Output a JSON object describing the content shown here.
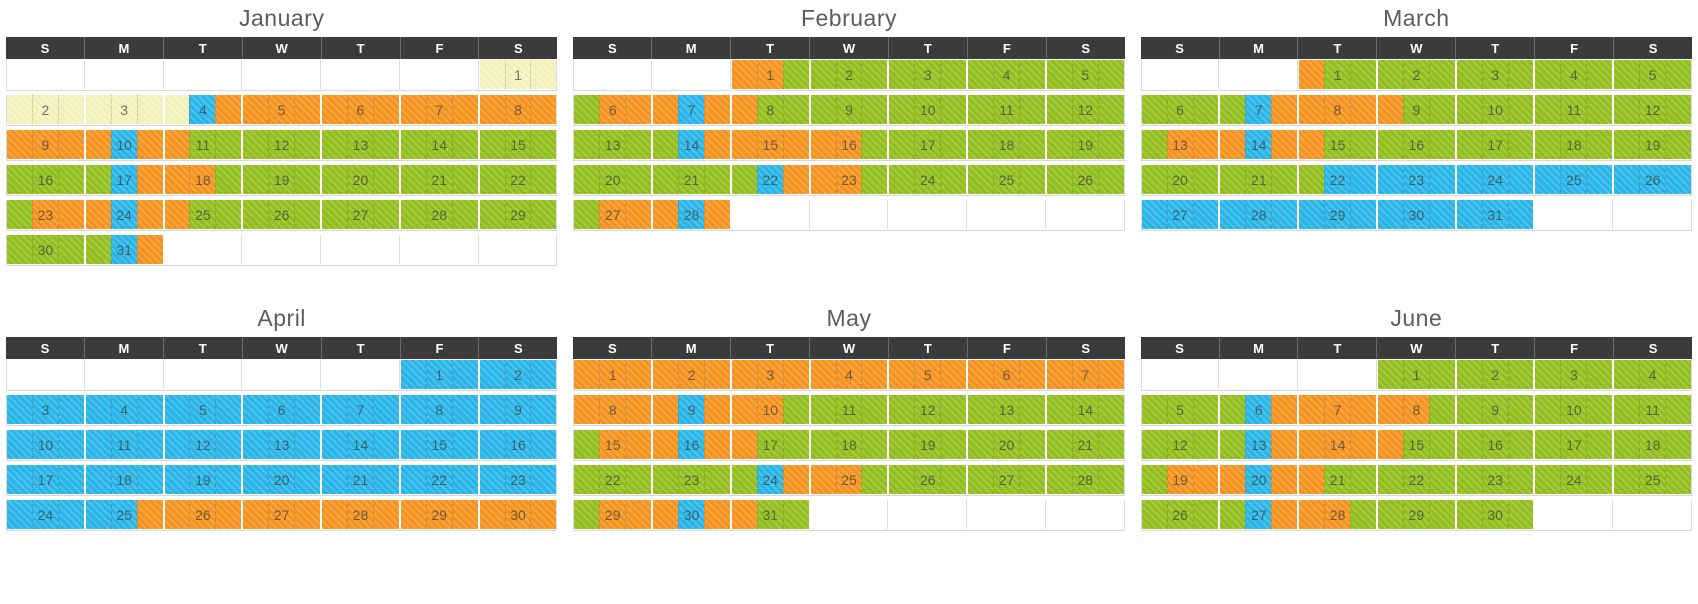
{
  "palette": {
    "o": "#F7941E",
    "g": "#93C01D",
    "b": "#29B7EA",
    "y": "#F5F4BE"
  },
  "colors": {
    "header_bg": "#3B3B3B",
    "header_text": "#FFFFFF",
    "title_text": "#5A5C5E",
    "row_line": "#D8D8D8",
    "grid_line": "#DCDCDC",
    "day_number_text": "#3E403E"
  },
  "weekday_headers": [
    "S",
    "M",
    "T",
    "W",
    "T",
    "F",
    "S"
  ],
  "months": [
    {
      "name": "January",
      "weeks": [
        [
          null,
          null,
          null,
          null,
          null,
          null,
          [
            1,
            "yyy"
          ]
        ],
        [
          [
            2,
            "yyy"
          ],
          [
            3,
            "yyy"
          ],
          [
            4,
            "ybo"
          ],
          [
            5,
            "ooo"
          ],
          [
            6,
            "ooo"
          ],
          [
            7,
            "ooo"
          ],
          [
            8,
            "ooo"
          ]
        ],
        [
          [
            9,
            "ooo"
          ],
          [
            10,
            "obo"
          ],
          [
            11,
            "ogg"
          ],
          [
            12,
            "ggg"
          ],
          [
            13,
            "ggg"
          ],
          [
            14,
            "ggg"
          ],
          [
            15,
            "ggg"
          ]
        ],
        [
          [
            16,
            "ggg"
          ],
          [
            17,
            "gbo"
          ],
          [
            18,
            "oog"
          ],
          [
            19,
            "ggg"
          ],
          [
            20,
            "ggg"
          ],
          [
            21,
            "ggg"
          ],
          [
            22,
            "ggg"
          ]
        ],
        [
          [
            23,
            "goo"
          ],
          [
            24,
            "obo"
          ],
          [
            25,
            "ogg"
          ],
          [
            26,
            "ggg"
          ],
          [
            27,
            "ggg"
          ],
          [
            28,
            "ggg"
          ],
          [
            29,
            "ggg"
          ]
        ],
        [
          [
            30,
            "ggg"
          ],
          [
            31,
            "gbo"
          ],
          null,
          null,
          null,
          null,
          null
        ]
      ]
    },
    {
      "name": "February",
      "weeks": [
        [
          null,
          null,
          [
            1,
            "oog"
          ],
          [
            2,
            "ggg"
          ],
          [
            3,
            "ggg"
          ],
          [
            4,
            "ggg"
          ],
          [
            5,
            "ggg"
          ]
        ],
        [
          [
            6,
            "goo"
          ],
          [
            7,
            "obo"
          ],
          [
            8,
            "ogg"
          ],
          [
            9,
            "ggg"
          ],
          [
            10,
            "ggg"
          ],
          [
            11,
            "ggg"
          ],
          [
            12,
            "ggg"
          ]
        ],
        [
          [
            13,
            "ggg"
          ],
          [
            14,
            "gbo"
          ],
          [
            15,
            "ooo"
          ],
          [
            16,
            "oog"
          ],
          [
            17,
            "ggg"
          ],
          [
            18,
            "ggg"
          ],
          [
            19,
            "ggg"
          ]
        ],
        [
          [
            20,
            "ggg"
          ],
          [
            21,
            "ggg"
          ],
          [
            22,
            "gbo"
          ],
          [
            23,
            "oog"
          ],
          [
            24,
            "ggg"
          ],
          [
            25,
            "ggg"
          ],
          [
            26,
            "ggg"
          ]
        ],
        [
          [
            27,
            "goo"
          ],
          [
            28,
            "obo"
          ],
          null,
          null,
          null,
          null,
          null
        ]
      ]
    },
    {
      "name": "March",
      "weeks": [
        [
          null,
          null,
          [
            1,
            "ogg"
          ],
          [
            2,
            "ggg"
          ],
          [
            3,
            "ggg"
          ],
          [
            4,
            "ggg"
          ],
          [
            5,
            "ggg"
          ]
        ],
        [
          [
            6,
            "ggg"
          ],
          [
            7,
            "gbo"
          ],
          [
            8,
            "ooo"
          ],
          [
            9,
            "ogg"
          ],
          [
            10,
            "ggg"
          ],
          [
            11,
            "ggg"
          ],
          [
            12,
            "ggg"
          ]
        ],
        [
          [
            13,
            "goo"
          ],
          [
            14,
            "obo"
          ],
          [
            15,
            "ogg"
          ],
          [
            16,
            "ggg"
          ],
          [
            17,
            "ggg"
          ],
          [
            18,
            "ggg"
          ],
          [
            19,
            "ggg"
          ]
        ],
        [
          [
            20,
            "ggg"
          ],
          [
            21,
            "ggg"
          ],
          [
            22,
            "gbb"
          ],
          [
            23,
            "bbb"
          ],
          [
            24,
            "bbb"
          ],
          [
            25,
            "bbb"
          ],
          [
            26,
            "bbb"
          ]
        ],
        [
          [
            27,
            "bbb"
          ],
          [
            28,
            "bbb"
          ],
          [
            29,
            "bbb"
          ],
          [
            30,
            "bbb"
          ],
          [
            31,
            "bbb"
          ],
          null,
          null
        ]
      ]
    },
    {
      "name": "April",
      "weeks": [
        [
          null,
          null,
          null,
          null,
          null,
          [
            1,
            "bbb"
          ],
          [
            2,
            "bbb"
          ]
        ],
        [
          [
            3,
            "bbb"
          ],
          [
            4,
            "bbb"
          ],
          [
            5,
            "bbb"
          ],
          [
            6,
            "bbb"
          ],
          [
            7,
            "bbb"
          ],
          [
            8,
            "bbb"
          ],
          [
            9,
            "bbb"
          ]
        ],
        [
          [
            10,
            "bbb"
          ],
          [
            11,
            "bbb"
          ],
          [
            12,
            "bbb"
          ],
          [
            13,
            "bbb"
          ],
          [
            14,
            "bbb"
          ],
          [
            15,
            "bbb"
          ],
          [
            16,
            "bbb"
          ]
        ],
        [
          [
            17,
            "bbb"
          ],
          [
            18,
            "bbb"
          ],
          [
            19,
            "bbb"
          ],
          [
            20,
            "bbb"
          ],
          [
            21,
            "bbb"
          ],
          [
            22,
            "bbb"
          ],
          [
            23,
            "bbb"
          ]
        ],
        [
          [
            24,
            "bbb"
          ],
          [
            25,
            "bbo"
          ],
          [
            26,
            "ooo"
          ],
          [
            27,
            "ooo"
          ],
          [
            28,
            "ooo"
          ],
          [
            29,
            "ooo"
          ],
          [
            30,
            "ooo"
          ]
        ]
      ]
    },
    {
      "name": "May",
      "weeks": [
        [
          [
            1,
            "ooo"
          ],
          [
            2,
            "ooo"
          ],
          [
            3,
            "ooo"
          ],
          [
            4,
            "ooo"
          ],
          [
            5,
            "ooo"
          ],
          [
            6,
            "ooo"
          ],
          [
            7,
            "ooo"
          ]
        ],
        [
          [
            8,
            "ooo"
          ],
          [
            9,
            "obo"
          ],
          [
            10,
            "oog"
          ],
          [
            11,
            "ggg"
          ],
          [
            12,
            "ggg"
          ],
          [
            13,
            "ggg"
          ],
          [
            14,
            "ggg"
          ]
        ],
        [
          [
            15,
            "goo"
          ],
          [
            16,
            "obo"
          ],
          [
            17,
            "ogg"
          ],
          [
            18,
            "ggg"
          ],
          [
            19,
            "ggg"
          ],
          [
            20,
            "ggg"
          ],
          [
            21,
            "ggg"
          ]
        ],
        [
          [
            22,
            "ggg"
          ],
          [
            23,
            "ggg"
          ],
          [
            24,
            "gbo"
          ],
          [
            25,
            "oog"
          ],
          [
            26,
            "ggg"
          ],
          [
            27,
            "ggg"
          ],
          [
            28,
            "ggg"
          ]
        ],
        [
          [
            29,
            "goo"
          ],
          [
            30,
            "obo"
          ],
          [
            31,
            "ogg"
          ],
          null,
          null,
          null,
          null
        ]
      ]
    },
    {
      "name": "June",
      "weeks": [
        [
          null,
          null,
          null,
          [
            1,
            "ggg"
          ],
          [
            2,
            "ggg"
          ],
          [
            3,
            "ggg"
          ],
          [
            4,
            "ggg"
          ]
        ],
        [
          [
            5,
            "ggg"
          ],
          [
            6,
            "gbo"
          ],
          [
            7,
            "ooo"
          ],
          [
            8,
            "oog"
          ],
          [
            9,
            "ggg"
          ],
          [
            10,
            "ggg"
          ],
          [
            11,
            "ggg"
          ]
        ],
        [
          [
            12,
            "ggg"
          ],
          [
            13,
            "gbo"
          ],
          [
            14,
            "ooo"
          ],
          [
            15,
            "ogg"
          ],
          [
            16,
            "ggg"
          ],
          [
            17,
            "ggg"
          ],
          [
            18,
            "ggg"
          ]
        ],
        [
          [
            19,
            "goo"
          ],
          [
            20,
            "obo"
          ],
          [
            21,
            "ogg"
          ],
          [
            22,
            "ggg"
          ],
          [
            23,
            "ggg"
          ],
          [
            24,
            "ggg"
          ],
          [
            25,
            "ggg"
          ]
        ],
        [
          [
            26,
            "ggg"
          ],
          [
            27,
            "gbo"
          ],
          [
            28,
            "oog"
          ],
          [
            29,
            "ggg"
          ],
          [
            30,
            "ggg"
          ],
          null,
          null
        ]
      ]
    }
  ]
}
